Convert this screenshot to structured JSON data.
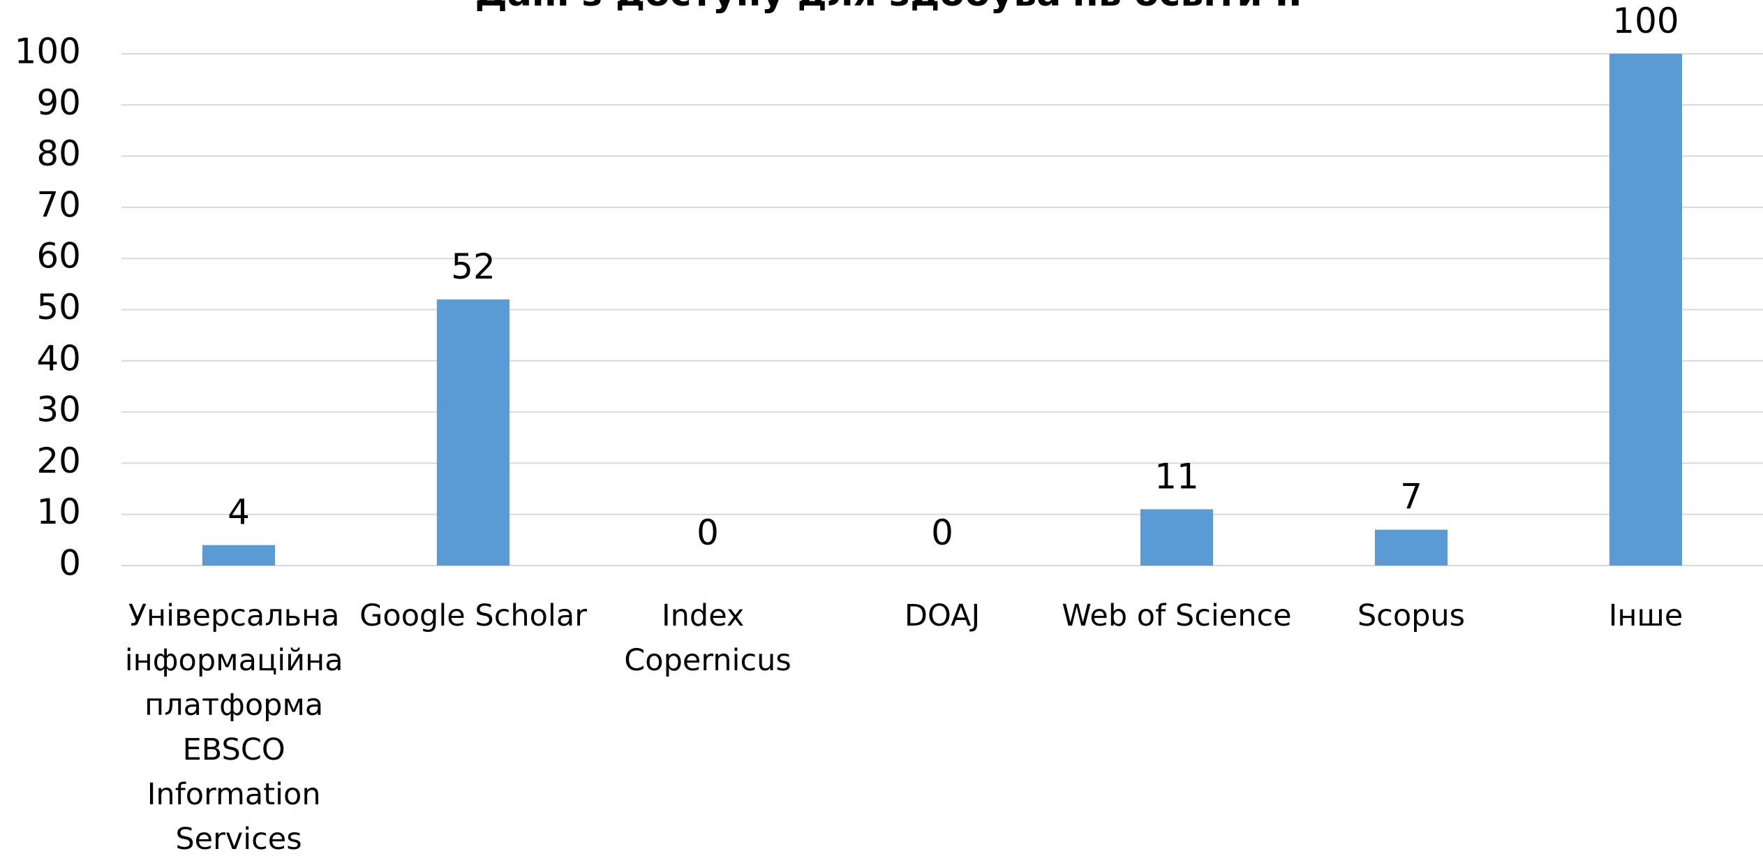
{
  "chart_data": {
    "type": "bar",
    "title": "Дані з доступу для здобувачів освіти ІІ",
    "categories": [
      "Універсальна інформаційна платформа EBSCO Information Services",
      "Google Scholar",
      "Index Copernicus",
      "DOAJ",
      "Web of Science",
      "Scopus",
      "Інше"
    ],
    "values": [
      4,
      52,
      0,
      0,
      11,
      7,
      100
    ],
    "color": "#5b9bd5",
    "ylim": [
      0,
      100
    ],
    "yticks": [
      0,
      10,
      20,
      30,
      40,
      50,
      60,
      70,
      80,
      90,
      100
    ],
    "grid": true
  }
}
